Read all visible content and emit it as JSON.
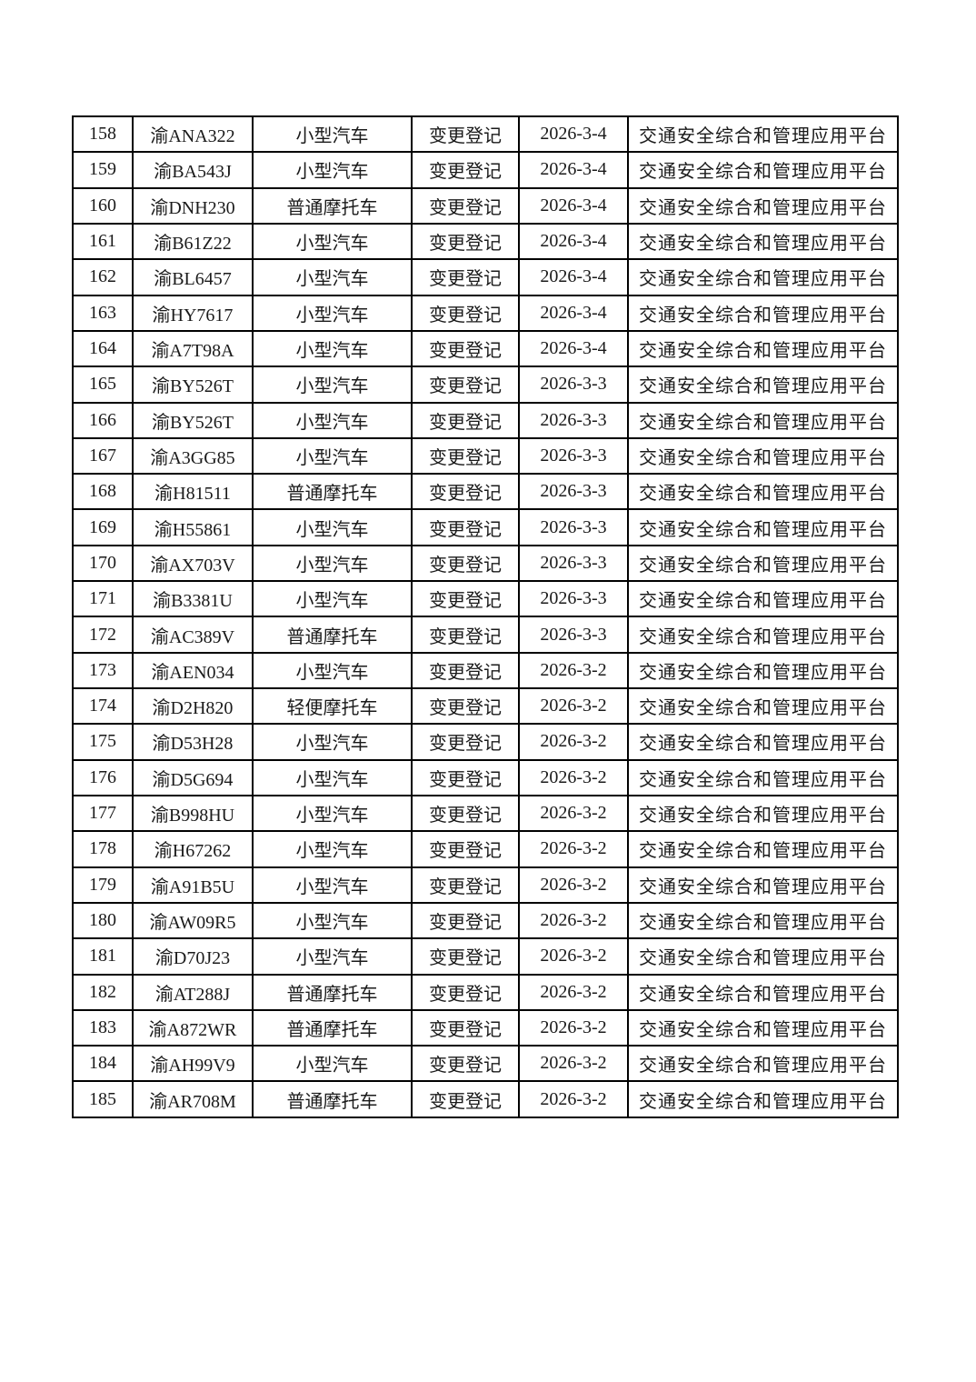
{
  "page": {
    "background_color": "#ffffff",
    "text_color": "#1a1a1a",
    "table_border_color": "#000000"
  },
  "table": {
    "fields": [
      "seq",
      "plate",
      "vehicle_type",
      "registration_type",
      "date",
      "platform"
    ],
    "rows": [
      {
        "seq": "158",
        "plate": "渝ANA322",
        "vehicle_type": "小型汽车",
        "registration_type": "变更登记",
        "date": "2026-3-4",
        "platform": "交通安全综合和管理应用平台"
      },
      {
        "seq": "159",
        "plate": "渝BA543J",
        "vehicle_type": "小型汽车",
        "registration_type": "变更登记",
        "date": "2026-3-4",
        "platform": "交通安全综合和管理应用平台"
      },
      {
        "seq": "160",
        "plate": "渝DNH230",
        "vehicle_type": "普通摩托车",
        "registration_type": "变更登记",
        "date": "2026-3-4",
        "platform": "交通安全综合和管理应用平台"
      },
      {
        "seq": "161",
        "plate": "渝B61Z22",
        "vehicle_type": "小型汽车",
        "registration_type": "变更登记",
        "date": "2026-3-4",
        "platform": "交通安全综合和管理应用平台"
      },
      {
        "seq": "162",
        "plate": "渝BL6457",
        "vehicle_type": "小型汽车",
        "registration_type": "变更登记",
        "date": "2026-3-4",
        "platform": "交通安全综合和管理应用平台"
      },
      {
        "seq": "163",
        "plate": "渝HY7617",
        "vehicle_type": "小型汽车",
        "registration_type": "变更登记",
        "date": "2026-3-4",
        "platform": "交通安全综合和管理应用平台"
      },
      {
        "seq": "164",
        "plate": "渝A7T98A",
        "vehicle_type": "小型汽车",
        "registration_type": "变更登记",
        "date": "2026-3-4",
        "platform": "交通安全综合和管理应用平台"
      },
      {
        "seq": "165",
        "plate": "渝BY526T",
        "vehicle_type": "小型汽车",
        "registration_type": "变更登记",
        "date": "2026-3-3",
        "platform": "交通安全综合和管理应用平台"
      },
      {
        "seq": "166",
        "plate": "渝BY526T",
        "vehicle_type": "小型汽车",
        "registration_type": "变更登记",
        "date": "2026-3-3",
        "platform": "交通安全综合和管理应用平台"
      },
      {
        "seq": "167",
        "plate": "渝A3GG85",
        "vehicle_type": "小型汽车",
        "registration_type": "变更登记",
        "date": "2026-3-3",
        "platform": "交通安全综合和管理应用平台"
      },
      {
        "seq": "168",
        "plate": "渝H81511",
        "vehicle_type": "普通摩托车",
        "registration_type": "变更登记",
        "date": "2026-3-3",
        "platform": "交通安全综合和管理应用平台"
      },
      {
        "seq": "169",
        "plate": "渝H55861",
        "vehicle_type": "小型汽车",
        "registration_type": "变更登记",
        "date": "2026-3-3",
        "platform": "交通安全综合和管理应用平台"
      },
      {
        "seq": "170",
        "plate": "渝AX703V",
        "vehicle_type": "小型汽车",
        "registration_type": "变更登记",
        "date": "2026-3-3",
        "platform": "交通安全综合和管理应用平台"
      },
      {
        "seq": "171",
        "plate": "渝B3381U",
        "vehicle_type": "小型汽车",
        "registration_type": "变更登记",
        "date": "2026-3-3",
        "platform": "交通安全综合和管理应用平台"
      },
      {
        "seq": "172",
        "plate": "渝AC389V",
        "vehicle_type": "普通摩托车",
        "registration_type": "变更登记",
        "date": "2026-3-3",
        "platform": "交通安全综合和管理应用平台"
      },
      {
        "seq": "173",
        "plate": "渝AEN034",
        "vehicle_type": "小型汽车",
        "registration_type": "变更登记",
        "date": "2026-3-2",
        "platform": "交通安全综合和管理应用平台"
      },
      {
        "seq": "174",
        "plate": "渝D2H820",
        "vehicle_type": "轻便摩托车",
        "registration_type": "变更登记",
        "date": "2026-3-2",
        "platform": "交通安全综合和管理应用平台"
      },
      {
        "seq": "175",
        "plate": "渝D53H28",
        "vehicle_type": "小型汽车",
        "registration_type": "变更登记",
        "date": "2026-3-2",
        "platform": "交通安全综合和管理应用平台"
      },
      {
        "seq": "176",
        "plate": "渝D5G694",
        "vehicle_type": "小型汽车",
        "registration_type": "变更登记",
        "date": "2026-3-2",
        "platform": "交通安全综合和管理应用平台"
      },
      {
        "seq": "177",
        "plate": "渝B998HU",
        "vehicle_type": "小型汽车",
        "registration_type": "变更登记",
        "date": "2026-3-2",
        "platform": "交通安全综合和管理应用平台"
      },
      {
        "seq": "178",
        "plate": "渝H67262",
        "vehicle_type": "小型汽车",
        "registration_type": "变更登记",
        "date": "2026-3-2",
        "platform": "交通安全综合和管理应用平台"
      },
      {
        "seq": "179",
        "plate": "渝A91B5U",
        "vehicle_type": "小型汽车",
        "registration_type": "变更登记",
        "date": "2026-3-2",
        "platform": "交通安全综合和管理应用平台"
      },
      {
        "seq": "180",
        "plate": "渝AW09R5",
        "vehicle_type": "小型汽车",
        "registration_type": "变更登记",
        "date": "2026-3-2",
        "platform": "交通安全综合和管理应用平台"
      },
      {
        "seq": "181",
        "plate": "渝D70J23",
        "vehicle_type": "小型汽车",
        "registration_type": "变更登记",
        "date": "2026-3-2",
        "platform": "交通安全综合和管理应用平台"
      },
      {
        "seq": "182",
        "plate": "渝AT288J",
        "vehicle_type": "普通摩托车",
        "registration_type": "变更登记",
        "date": "2026-3-2",
        "platform": "交通安全综合和管理应用平台"
      },
      {
        "seq": "183",
        "plate": "渝A872WR",
        "vehicle_type": "普通摩托车",
        "registration_type": "变更登记",
        "date": "2026-3-2",
        "platform": "交通安全综合和管理应用平台"
      },
      {
        "seq": "184",
        "plate": "渝AH99V9",
        "vehicle_type": "小型汽车",
        "registration_type": "变更登记",
        "date": "2026-3-2",
        "platform": "交通安全综合和管理应用平台"
      },
      {
        "seq": "185",
        "plate": "渝AR708M",
        "vehicle_type": "普通摩托车",
        "registration_type": "变更登记",
        "date": "2026-3-2",
        "platform": "交通安全综合和管理应用平台"
      }
    ]
  }
}
